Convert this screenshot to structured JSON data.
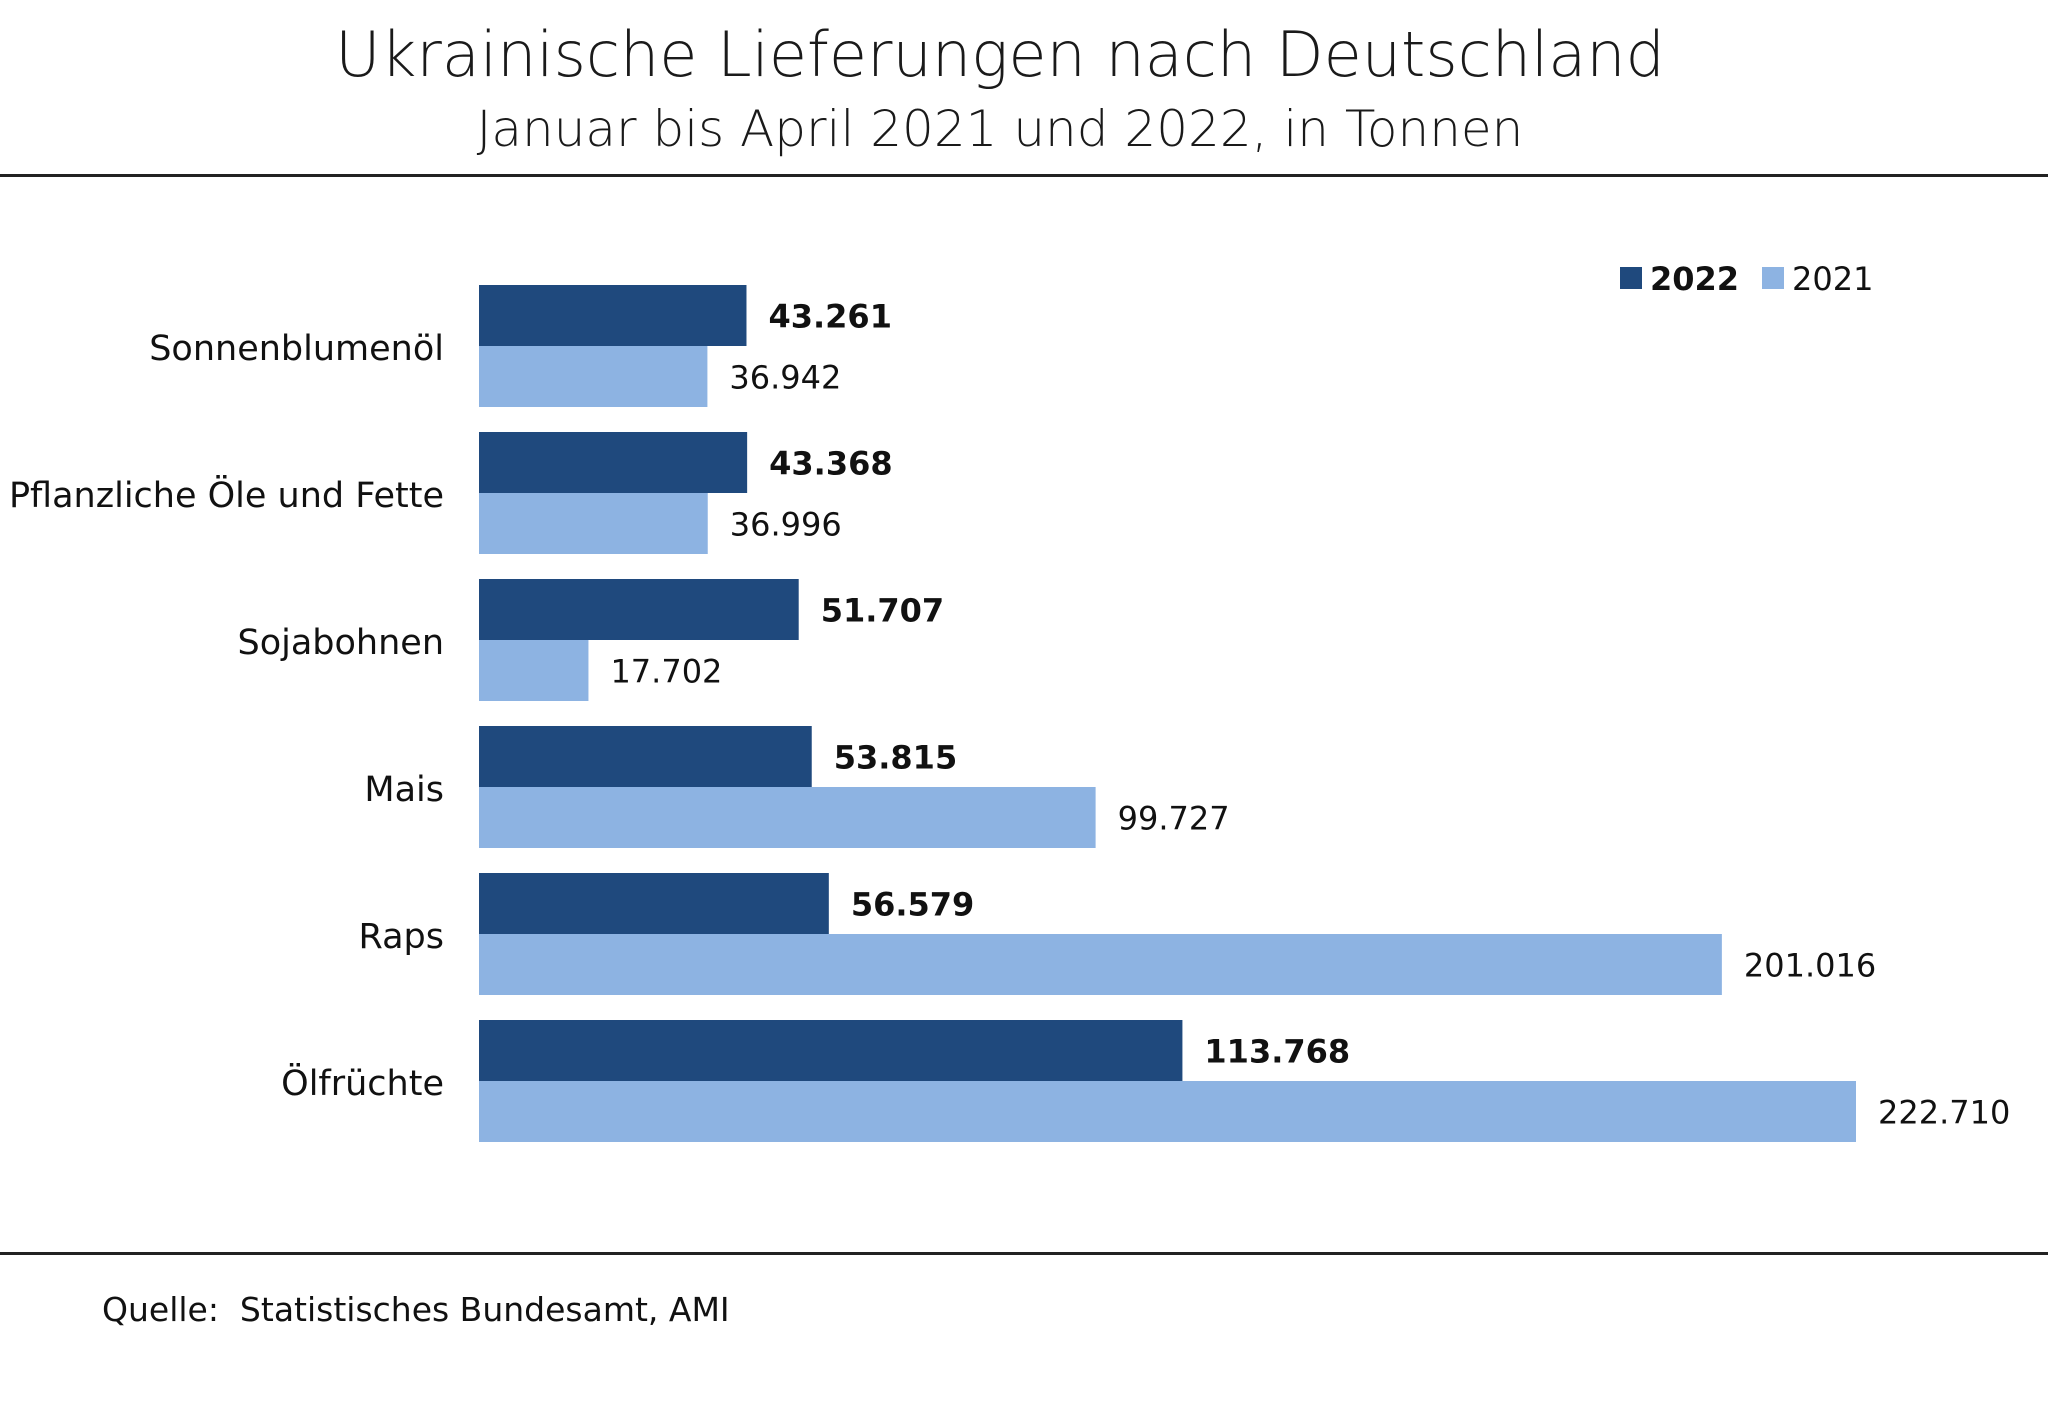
{
  "chart_data": {
    "type": "bar",
    "orientation": "horizontal",
    "title": "Ukrainische Lieferungen nach Deutschland",
    "subtitle": "Januar bis April 2021 und 2022, in Tonnen",
    "categories": [
      "Sonnenblumenöl",
      "Pflanzliche Öle und Fette",
      "Sojabohnen",
      "Mais",
      "Raps",
      "Ölfrüchte"
    ],
    "series": [
      {
        "name": "2022",
        "color": "#1f497d",
        "values": [
          43261,
          43368,
          51707,
          53815,
          56579,
          113768
        ],
        "labels": [
          "43.261",
          "43.368",
          "51.707",
          "53.815",
          "56.579",
          "113.768"
        ]
      },
      {
        "name": "2021",
        "color": "#8db3e2",
        "values": [
          36942,
          36996,
          17702,
          99727,
          201016,
          222710
        ],
        "labels": [
          "36.942",
          "36.996",
          "17.702",
          "99.727",
          "201.016",
          "222.710"
        ]
      }
    ],
    "xlim": [
      0,
      222710
    ],
    "grid": false,
    "legend_position": "top-right"
  },
  "source": "Quelle:  Statistisches Bundesamt, AMI"
}
